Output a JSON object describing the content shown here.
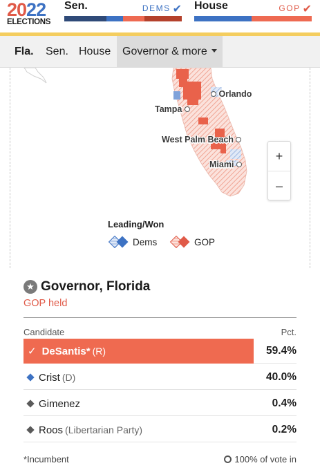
{
  "header": {
    "logo_year_a": "20",
    "logo_year_b": "22",
    "logo_word": "ELECTIONS",
    "senate": {
      "label": "Sen.",
      "leader": "DEMS",
      "segments": [
        {
          "color": "#2f4a78",
          "share": 0.36
        },
        {
          "color": "#3d72c3",
          "share": 0.14
        },
        {
          "color": "#ee6a52",
          "share": 0.18
        },
        {
          "color": "#b4412c",
          "share": 0.32
        }
      ]
    },
    "house": {
      "label": "House",
      "leader": "GOP",
      "segments": [
        {
          "color": "#3d72c3",
          "share": 0.49
        },
        {
          "color": "#ee6a52",
          "share": 0.51
        }
      ]
    },
    "accent": "#f4cd5f"
  },
  "tabs": {
    "state": "Fla.",
    "senate": "Sen.",
    "house": "House",
    "more": "Governor & more"
  },
  "map": {
    "cities": {
      "orlando": "Orlando",
      "tampa": "Tampa",
      "west_palm_beach": "West Palm Beach",
      "miami": "Miami"
    },
    "zoom_in": "+",
    "zoom_out": "–",
    "legend": {
      "title": "Leading/Won",
      "dems": "Dems",
      "gop": "GOP"
    },
    "colors": {
      "dem": "#3d72c3",
      "gop": "#e05a48"
    }
  },
  "race": {
    "title": "Governor, Florida",
    "status": "GOP held",
    "col_candidate": "Candidate",
    "col_pct": "Pct.",
    "candidates": [
      {
        "name": "DeSantis*",
        "party": "(R)",
        "pct": "59.4%",
        "winner": true
      },
      {
        "name": "Crist",
        "party": "(D)",
        "pct": "40.0%",
        "color": "#3d72c3"
      },
      {
        "name": "Gimenez",
        "party": "",
        "pct": "0.4%",
        "color": "#5a5a5a"
      },
      {
        "name": "Roos",
        "party": "(Libertarian Party)",
        "pct": "0.2%",
        "color": "#5a5a5a"
      }
    ],
    "footnote": "*Incumbent",
    "reporting": "100% of vote in"
  }
}
